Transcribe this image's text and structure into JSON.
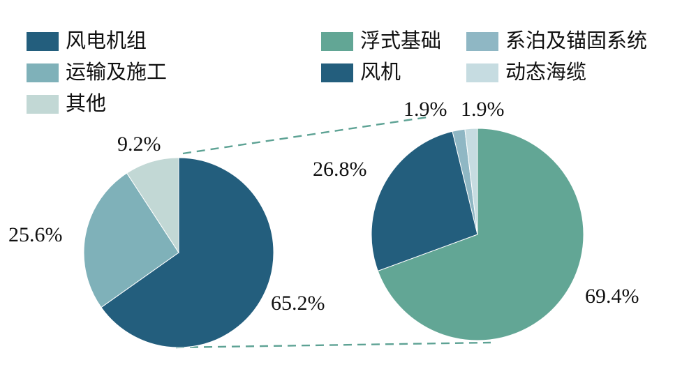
{
  "accent_colors": {
    "navy": "#235e7d",
    "green": "#62a695",
    "teal": "#7fb1b9",
    "steel": "#8fb7c4",
    "pale_green": "#c2d8d5",
    "pale_blue": "#c6dce1",
    "connector": "#5da294"
  },
  "legend": {
    "columns": [
      {
        "items": [
          {
            "name": "wind-turbine-unit",
            "label": "风电机组",
            "color": "#235e7d"
          },
          {
            "name": "transport-construction",
            "label": "运输及施工",
            "color": "#7fb1b9"
          },
          {
            "name": "other",
            "label": "其他",
            "color": "#c2d8d5"
          }
        ]
      },
      {
        "items": [
          {
            "name": "floating-foundation",
            "label": "浮式基础",
            "color": "#62a695"
          },
          {
            "name": "wind-turbine",
            "label": "风机",
            "color": "#235e7d"
          }
        ]
      },
      {
        "items": [
          {
            "name": "mooring-anchoring-system",
            "label": "系泊及锚固系统",
            "color": "#8fb7c4"
          },
          {
            "name": "dynamic-sea-cable",
            "label": "动态海缆",
            "color": "#c6dce1"
          }
        ]
      }
    ]
  },
  "chart_data": [
    {
      "type": "pie",
      "name": "overall-cost-breakdown",
      "start_angle_deg": 0,
      "direction": "clockwise",
      "slices": [
        {
          "name": "wind-turbine-unit",
          "label": "风电机组",
          "value": 65.2,
          "display": "65.2%",
          "color": "#235e7d"
        },
        {
          "name": "transport-construction",
          "label": "运输及施工",
          "value": 25.6,
          "display": "25.6%",
          "color": "#7fb1b9"
        },
        {
          "name": "other",
          "label": "其他",
          "value": 9.2,
          "display": "9.2%",
          "color": "#c2d8d5"
        }
      ]
    },
    {
      "type": "pie",
      "name": "wind-turbine-unit-breakdown",
      "start_angle_deg": 0,
      "direction": "clockwise",
      "slices": [
        {
          "name": "floating-foundation",
          "label": "浮式基础",
          "value": 69.4,
          "display": "69.4%",
          "color": "#62a695"
        },
        {
          "name": "wind-turbine",
          "label": "风机",
          "value": 26.8,
          "display": "26.8%",
          "color": "#235e7d"
        },
        {
          "name": "mooring-anchoring-system",
          "label": "系泊及锚固系统",
          "value": 1.9,
          "display": "1.9%",
          "color": "#8fb7c4"
        },
        {
          "name": "dynamic-sea-cable",
          "label": "动态海缆",
          "value": 1.9,
          "display": "1.9%",
          "color": "#c6dce1"
        }
      ]
    }
  ]
}
